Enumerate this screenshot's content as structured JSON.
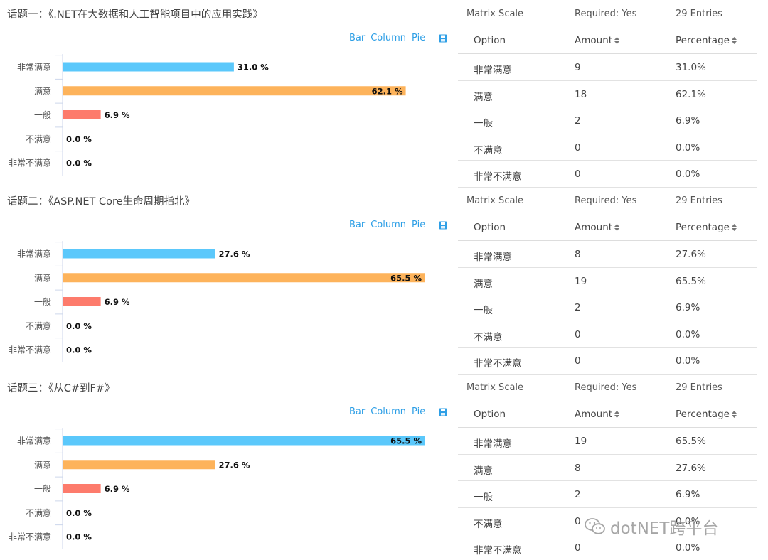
{
  "colors": {
    "link": "#2e9fe6",
    "series": [
      "#5bc8fb",
      "#fdb35b",
      "#fd7b6c",
      "#8fd36b",
      "#b18cf5"
    ]
  },
  "toolbar": {
    "bar": "Bar",
    "column": "Column",
    "pie": "Pie",
    "save_icon": "save-icon"
  },
  "table_header": {
    "option": "Option",
    "amount": "Amount",
    "percentage": "Percentage"
  },
  "sections": [
    {
      "title": "话题一：《.NET在大数据和人工智能项目中的应用实践》",
      "meta": {
        "type": "Matrix Scale",
        "required": "Required: Yes",
        "entries": "29 Entries"
      },
      "rows": [
        {
          "option": "非常满意",
          "amount": "9",
          "percentage": "31.0%"
        },
        {
          "option": "满意",
          "amount": "18",
          "percentage": "62.1%"
        },
        {
          "option": "一般",
          "amount": "2",
          "percentage": "6.9%"
        },
        {
          "option": "不满意",
          "amount": "0",
          "percentage": "0.0%"
        },
        {
          "option": "非常不满意",
          "amount": "0",
          "percentage": "0.0%"
        }
      ]
    },
    {
      "title": "话题二：《ASP.NET Core生命周期指北》",
      "meta": {
        "type": "Matrix Scale",
        "required": "Required: Yes",
        "entries": "29 Entries"
      },
      "rows": [
        {
          "option": "非常满意",
          "amount": "8",
          "percentage": "27.6%"
        },
        {
          "option": "满意",
          "amount": "19",
          "percentage": "65.5%"
        },
        {
          "option": "一般",
          "amount": "2",
          "percentage": "6.9%"
        },
        {
          "option": "不满意",
          "amount": "0",
          "percentage": "0.0%"
        },
        {
          "option": "非常不满意",
          "amount": "0",
          "percentage": "0.0%"
        }
      ]
    },
    {
      "title": "话题三：《从C#到F#》",
      "meta": {
        "type": "Matrix Scale",
        "required": "Required: Yes",
        "entries": "29 Entries"
      },
      "rows": [
        {
          "option": "非常满意",
          "amount": "19",
          "percentage": "65.5%"
        },
        {
          "option": "满意",
          "amount": "8",
          "percentage": "27.6%"
        },
        {
          "option": "一般",
          "amount": "2",
          "percentage": "6.9%"
        },
        {
          "option": "不满意",
          "amount": "0",
          "percentage": "0.0%"
        },
        {
          "option": "非常不满意",
          "amount": "0",
          "percentage": "0.0%"
        }
      ]
    }
  ],
  "chart_data": [
    {
      "type": "bar",
      "categories": [
        "非常满意",
        "满意",
        "一般",
        "不满意",
        "非常不满意"
      ],
      "values": [
        31.0,
        62.1,
        6.9,
        0.0,
        0.0
      ],
      "value_labels": [
        "31.0 %",
        "62.1 %",
        "6.9 %",
        "0.0 %",
        "0.0 %"
      ],
      "xlim": [
        0,
        65.5
      ]
    },
    {
      "type": "bar",
      "categories": [
        "非常满意",
        "满意",
        "一般",
        "不满意",
        "非常不满意"
      ],
      "values": [
        27.6,
        65.5,
        6.9,
        0.0,
        0.0
      ],
      "value_labels": [
        "27.6 %",
        "65.5 %",
        "6.9 %",
        "0.0 %",
        "0.0 %"
      ],
      "xlim": [
        0,
        65.5
      ]
    },
    {
      "type": "bar",
      "categories": [
        "非常满意",
        "满意",
        "一般",
        "不满意",
        "非常不满意"
      ],
      "values": [
        65.5,
        27.6,
        6.9,
        0.0,
        0.0
      ],
      "value_labels": [
        "65.5 %",
        "27.6 %",
        "6.9 %",
        "0.0 %",
        "0.0 %"
      ],
      "xlim": [
        0,
        65.5
      ]
    }
  ],
  "watermark": {
    "text": "dotNET跨平台",
    "icon": "wechat-icon"
  }
}
